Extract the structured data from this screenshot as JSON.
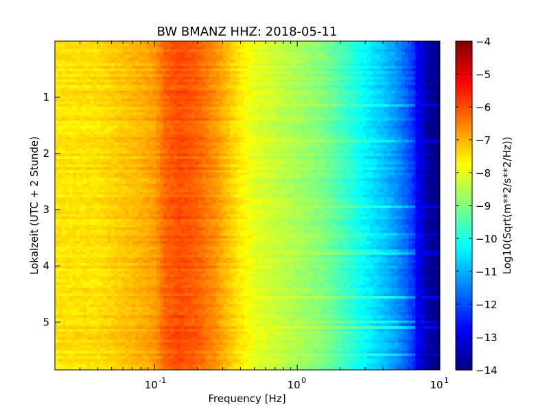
{
  "chart_data": {
    "type": "heatmap",
    "title": "BW BMANZ HHZ: 2018-05-11",
    "xlabel": "Frequency [Hz]",
    "ylabel": "Lokalzeit (UTC + 2 Stunde)",
    "colorbar_label": "Log10(Sqrt(m**2/s**2/Hz))",
    "xscale": "log",
    "xlim": [
      0.02,
      10
    ],
    "ylim": [
      5.85,
      0
    ],
    "y_inverted": true,
    "x_major_ticks": [
      {
        "value": 0.1,
        "base": "10",
        "exp": "-1"
      },
      {
        "value": 1,
        "base": "10",
        "exp": "0"
      },
      {
        "value": 10,
        "base": "10",
        "exp": "1"
      }
    ],
    "y_ticks": [
      {
        "value": 1,
        "label": "1"
      },
      {
        "value": 2,
        "label": "2"
      },
      {
        "value": 3,
        "label": "3"
      },
      {
        "value": 4,
        "label": "4"
      },
      {
        "value": 5,
        "label": "5"
      }
    ],
    "colorbar": {
      "colormap": "jet",
      "min": -14,
      "max": -4,
      "ticks": [
        {
          "value": -4,
          "label": "−4"
        },
        {
          "value": -5,
          "label": "−5"
        },
        {
          "value": -6,
          "label": "−6"
        },
        {
          "value": -7,
          "label": "−7"
        },
        {
          "value": -8,
          "label": "−8"
        },
        {
          "value": -9,
          "label": "−9"
        },
        {
          "value": -10,
          "label": "−10"
        },
        {
          "value": -11,
          "label": "−11"
        },
        {
          "value": -12,
          "label": "−12"
        },
        {
          "value": -13,
          "label": "−13"
        },
        {
          "value": -14,
          "label": "−14"
        }
      ]
    },
    "spectrum_profile": {
      "frequency_hz": [
        0.02,
        0.04,
        0.06,
        0.08,
        0.1,
        0.12,
        0.15,
        0.2,
        0.27,
        0.35,
        0.5,
        0.7,
        1.0,
        1.5,
        2.0,
        3.0,
        4.0,
        5.0,
        6.0,
        7.0,
        8.0,
        10.0
      ],
      "log10_amplitude": [
        -7.5,
        -7.45,
        -7.2,
        -7.0,
        -6.8,
        -6.2,
        -6.0,
        -6.2,
        -6.7,
        -7.3,
        -8.0,
        -8.3,
        -8.6,
        -9.0,
        -9.5,
        -10.3,
        -10.8,
        -11.3,
        -11.9,
        -12.6,
        -13.6,
        -14.0
      ]
    }
  }
}
